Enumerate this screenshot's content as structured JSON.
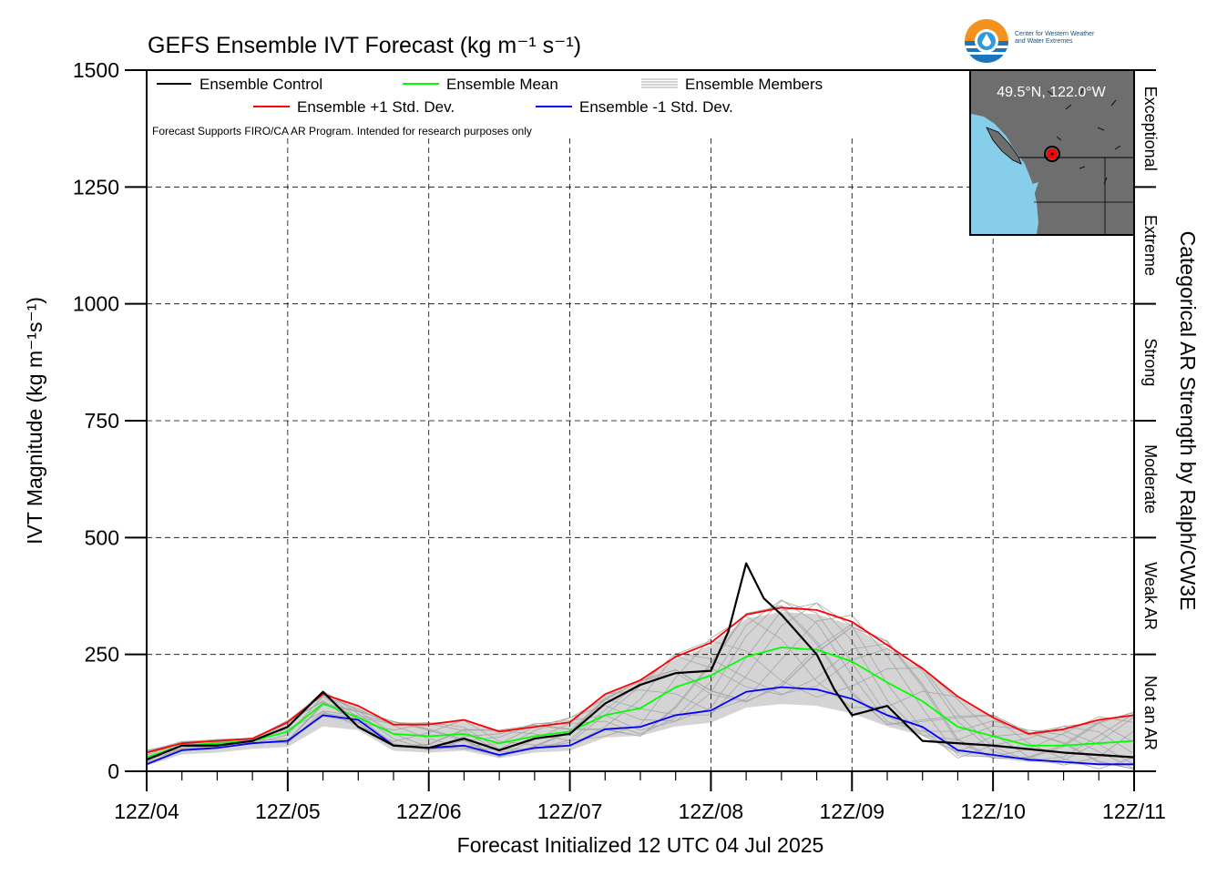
{
  "chart_data": {
    "type": "line",
    "title": "GEFS Ensemble IVT Forecast (kg m⁻¹ s⁻¹)",
    "xlabel": "Forecast Initialized 12 UTC 04 Jul 2025",
    "ylabel": "IVT Magnitude (kg m⁻¹s⁻¹)",
    "right_label": "Categorical AR Strength by Ralph/CW3E",
    "note": "Forecast Supports FIRO/CA AR Program. Intended for research purposes only",
    "location": "49.5°N, 122.0°W",
    "logo_text": [
      "Center for Western Weather",
      "and Water Extremes"
    ],
    "ylim": [
      0,
      1500
    ],
    "xlim": [
      0,
      168
    ],
    "yticks": [
      0,
      250,
      500,
      750,
      1000,
      1250,
      1500
    ],
    "xtick_labels": [
      "12Z/04",
      "12Z/05",
      "12Z/06",
      "12Z/07",
      "12Z/08",
      "12Z/09",
      "12Z/10",
      "12Z/11"
    ],
    "xtick_hours": [
      0,
      24,
      48,
      72,
      96,
      120,
      144,
      168
    ],
    "grid": true,
    "legend": [
      {
        "label": "Ensemble Control",
        "color": "#000000",
        "style": "solid"
      },
      {
        "label": "Ensemble Mean",
        "color": "#00ff00",
        "style": "solid"
      },
      {
        "label": "Ensemble Members",
        "color": "#a0a0a0",
        "style": "multi"
      },
      {
        "label": "Ensemble +1 Std. Dev.",
        "color": "#ff0000",
        "style": "solid"
      },
      {
        "label": "Ensemble -1 Std. Dev.",
        "color": "#0000ff",
        "style": "solid"
      }
    ],
    "categories_ar": [
      {
        "label": "Not an AR",
        "from": 0,
        "to": 250
      },
      {
        "label": "Weak AR",
        "from": 250,
        "to": 500
      },
      {
        "label": "Moderate",
        "from": 500,
        "to": 750
      },
      {
        "label": "Strong",
        "from": 750,
        "to": 1000
      },
      {
        "label": "Extreme",
        "from": 1000,
        "to": 1250
      },
      {
        "label": "Exceptional",
        "from": 1250,
        "to": 1500
      }
    ],
    "x": [
      0,
      6,
      12,
      18,
      24,
      30,
      36,
      42,
      48,
      54,
      60,
      66,
      72,
      78,
      84,
      90,
      96,
      102,
      108,
      114,
      120,
      126,
      132,
      138,
      144,
      150,
      156,
      162,
      168
    ],
    "series": [
      {
        "name": "Ensemble Control",
        "color": "#000000",
        "values": [
          25,
          55,
          55,
          65,
          95,
          170,
          95,
          55,
          50,
          70,
          45,
          70,
          80,
          145,
          185,
          210,
          215,
          300,
          445,
          370,
          335,
          250,
          175,
          120,
          140,
          65,
          55,
          40,
          30
        ],
        "hours": [
          0,
          6,
          12,
          18,
          24,
          30,
          36,
          42,
          48,
          54,
          60,
          66,
          72,
          78,
          84,
          90,
          96,
          99,
          102,
          105,
          108,
          114,
          117,
          120,
          126,
          132,
          144,
          156,
          168
        ]
      },
      {
        "name": "Ensemble Mean",
        "color": "#00ff00",
        "values": [
          30,
          55,
          60,
          65,
          85,
          145,
          115,
          80,
          75,
          80,
          60,
          75,
          85,
          120,
          135,
          180,
          205,
          245,
          265,
          260,
          235,
          190,
          150,
          95,
          75,
          55,
          55,
          60,
          65
        ]
      },
      {
        "name": "Ensemble +1 Std. Dev.",
        "color": "#ff0000",
        "values": [
          40,
          60,
          65,
          70,
          105,
          165,
          140,
          100,
          100,
          110,
          85,
          95,
          105,
          165,
          195,
          245,
          275,
          335,
          350,
          345,
          320,
          270,
          220,
          160,
          115,
          80,
          90,
          110,
          120
        ]
      },
      {
        "name": "Ensemble -1 Std. Dev.",
        "color": "#0000ff",
        "values": [
          15,
          45,
          50,
          60,
          65,
          120,
          110,
          55,
          50,
          55,
          35,
          50,
          55,
          90,
          95,
          120,
          130,
          170,
          180,
          175,
          155,
          120,
          95,
          45,
          35,
          25,
          20,
          15,
          15
        ]
      }
    ]
  }
}
